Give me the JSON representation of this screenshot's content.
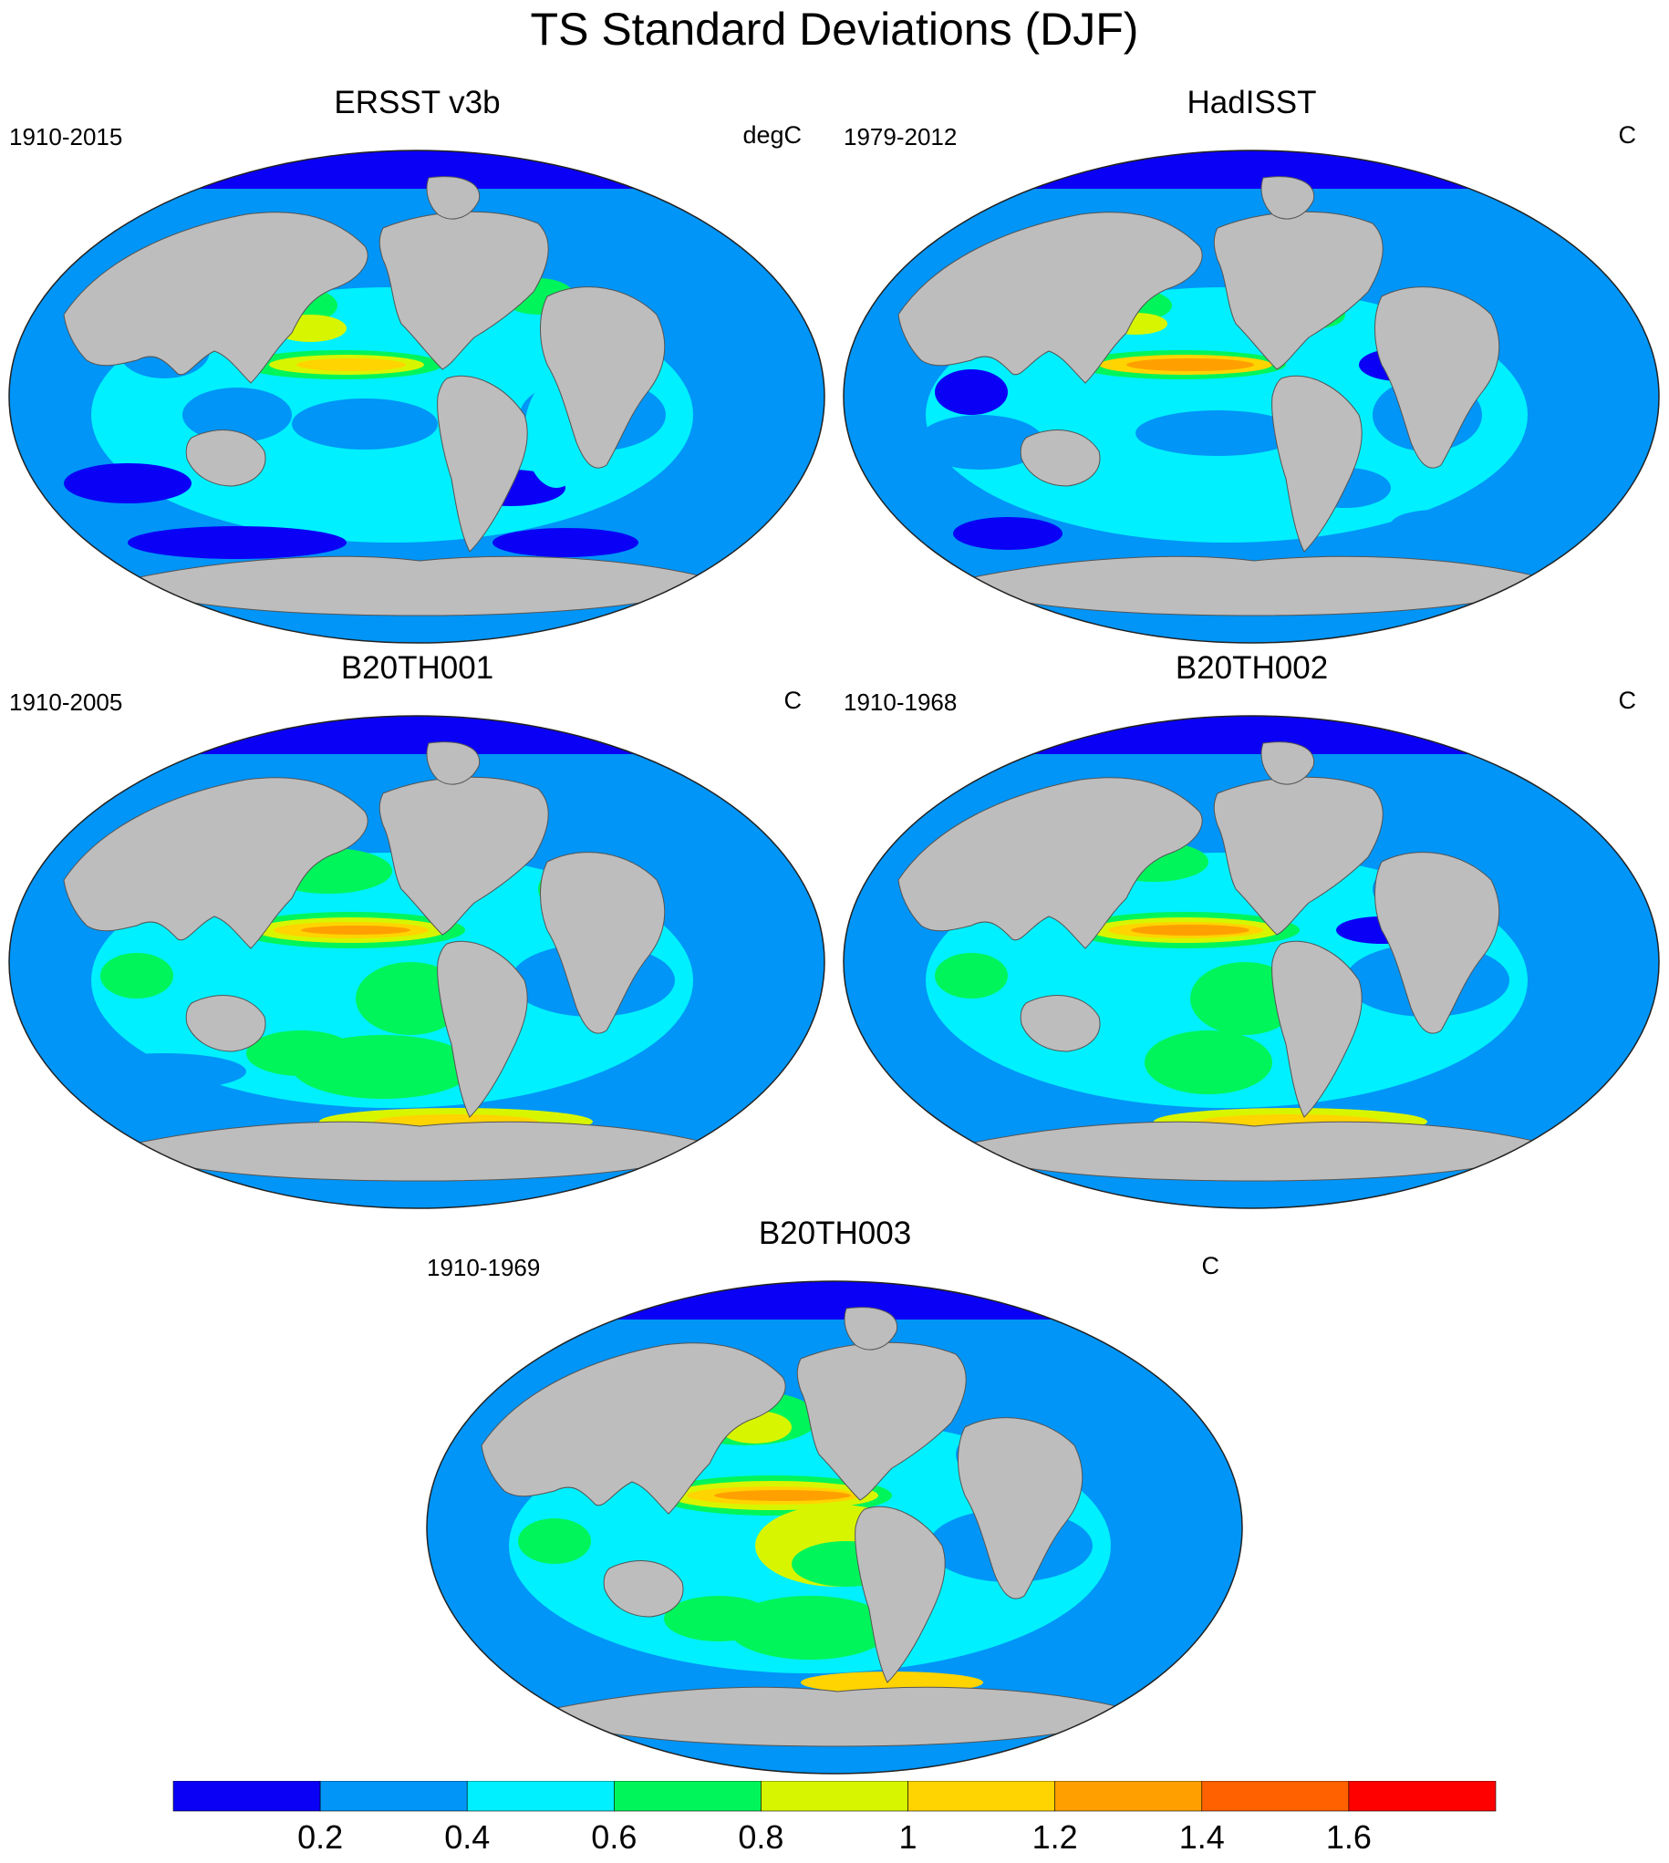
{
  "title": "TS Standard Deviations (DJF)",
  "panels": [
    {
      "title": "ERSST v3b",
      "years": "1910-2015",
      "units": "degC"
    },
    {
      "title": "HadISST",
      "years": "1979-2012",
      "units": "C"
    },
    {
      "title": "B20TH001",
      "years": "1910-2005",
      "units": "C"
    },
    {
      "title": "B20TH002",
      "years": "1910-1968",
      "units": "C"
    },
    {
      "title": "B20TH003",
      "years": "1910-1969",
      "units": "C"
    }
  ],
  "colorbar": {
    "colors": [
      "#0a00f5",
      "#0095f7",
      "#00f0ff",
      "#00f55a",
      "#d8f500",
      "#ffd400",
      "#ffa000",
      "#ff6000",
      "#ff0000"
    ],
    "labels": [
      "0.2",
      "0.4",
      "0.6",
      "0.8",
      "1",
      "1.2",
      "1.4",
      "1.6"
    ]
  },
  "land_color": "#bdbdbd"
}
